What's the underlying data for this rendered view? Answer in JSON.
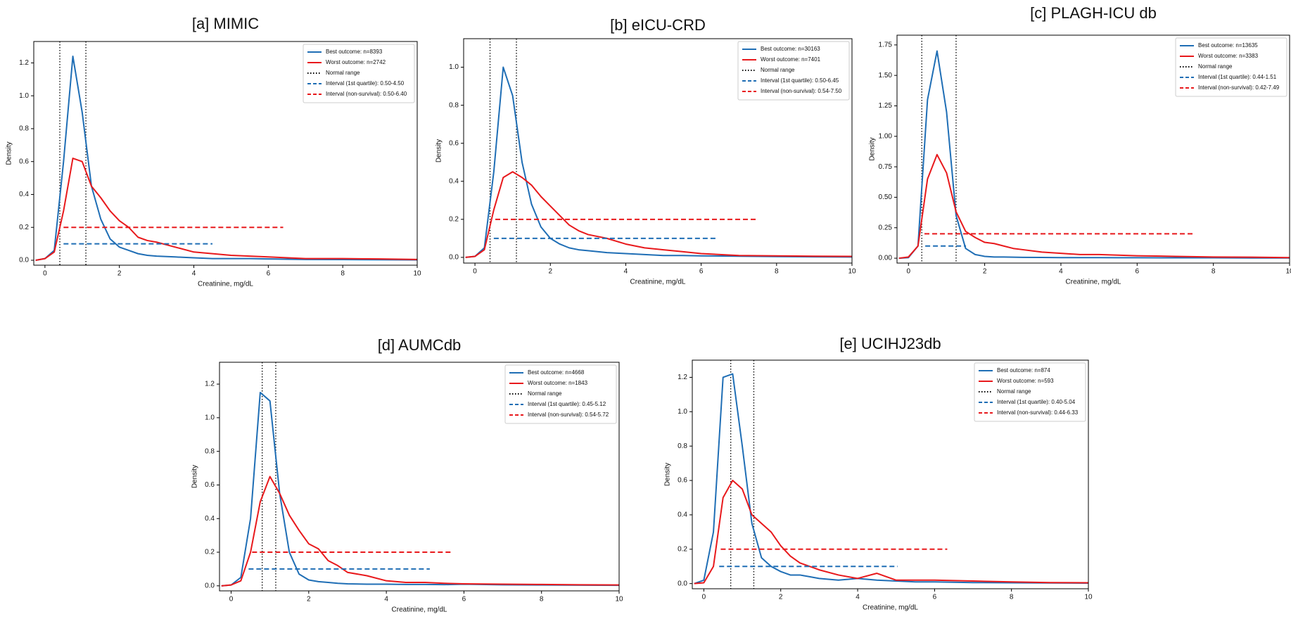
{
  "chart_data": [
    {
      "type": "line",
      "title": "[a] MIMIC",
      "xlabel": "Creatinine, mg/dL",
      "ylabel": "Density",
      "xlim": [
        -0.3,
        10
      ],
      "ylim": [
        -0.03,
        1.33
      ],
      "xticks": [
        0,
        2,
        4,
        6,
        8,
        10
      ],
      "yticks": [
        {
          "value": 0,
          "label": "0.0"
        },
        0.2,
        0.4,
        0.6,
        0.8,
        {
          "value": 1,
          "label": "1.0"
        },
        1.2
      ],
      "legend": "upper right",
      "x": [
        -0.25,
        0,
        0.25,
        0.5,
        0.75,
        1,
        1.25,
        1.5,
        1.75,
        2,
        2.25,
        2.5,
        2.75,
        3,
        3.5,
        4,
        4.5,
        5,
        5.5,
        6,
        7,
        8,
        9,
        10
      ],
      "series": [
        {
          "name": "Best outcome: n=8393",
          "color": "#1f6eb5",
          "values": [
            0,
            0.01,
            0.06,
            0.6,
            1.24,
            0.9,
            0.45,
            0.25,
            0.13,
            0.08,
            0.06,
            0.04,
            0.03,
            0.025,
            0.02,
            0.015,
            0.01,
            0.01,
            0.01,
            0.008,
            0.005,
            0.004,
            0.003,
            0.002
          ]
        },
        {
          "name": "Worst outcome: n=2742",
          "color": "#e8191c",
          "values": [
            0,
            0.01,
            0.05,
            0.3,
            0.62,
            0.6,
            0.45,
            0.38,
            0.3,
            0.24,
            0.2,
            0.14,
            0.12,
            0.11,
            0.08,
            0.05,
            0.04,
            0.03,
            0.025,
            0.02,
            0.01,
            0.01,
            0.008,
            0.005
          ]
        }
      ],
      "normal_range": {
        "name": "Normal range",
        "x": [
          0.4,
          1.1
        ]
      },
      "intervals": [
        {
          "name": "Interval (1st quartile): 0.50-4.50",
          "color": "#1f6eb5",
          "x": [
            0.5,
            4.5
          ],
          "y": 0.1
        },
        {
          "name": "Interval (non-survival): 0.50-6.40",
          "color": "#e8191c",
          "x": [
            0.5,
            6.4
          ],
          "y": 0.2
        }
      ]
    },
    {
      "type": "line",
      "title": "[b] eICU-CRD",
      "xlabel": "Creatinine, mg/dL",
      "ylabel": "Density",
      "xlim": [
        -0.3,
        10
      ],
      "ylim": [
        -0.03,
        1.15
      ],
      "xticks": [
        0,
        2,
        4,
        6,
        8,
        10
      ],
      "yticks": [
        {
          "value": 0,
          "label": "0.0"
        },
        0.2,
        0.4,
        0.6,
        0.8,
        {
          "value": 1,
          "label": "1.0"
        }
      ],
      "legend": "upper right",
      "x": [
        -0.25,
        0,
        0.25,
        0.5,
        0.75,
        1,
        1.25,
        1.5,
        1.75,
        2,
        2.25,
        2.5,
        2.75,
        3,
        3.5,
        4,
        4.5,
        5,
        5.5,
        6,
        7,
        8,
        9,
        10
      ],
      "series": [
        {
          "name": "Best outcome: n=30163",
          "color": "#1f6eb5",
          "values": [
            0,
            0.005,
            0.05,
            0.45,
            1.0,
            0.85,
            0.5,
            0.28,
            0.16,
            0.1,
            0.07,
            0.05,
            0.04,
            0.035,
            0.025,
            0.02,
            0.015,
            0.01,
            0.01,
            0.008,
            0.006,
            0.004,
            0.003,
            0.002
          ]
        },
        {
          "name": "Worst outcome: n=7401",
          "color": "#e8191c",
          "values": [
            0,
            0.005,
            0.04,
            0.25,
            0.42,
            0.45,
            0.42,
            0.38,
            0.32,
            0.27,
            0.22,
            0.17,
            0.14,
            0.12,
            0.1,
            0.07,
            0.05,
            0.04,
            0.03,
            0.02,
            0.01,
            0.008,
            0.006,
            0.005
          ]
        }
      ],
      "normal_range": {
        "name": "Normal range",
        "x": [
          0.4,
          1.1
        ]
      },
      "intervals": [
        {
          "name": "Interval (1st quartile): 0.50-6.45",
          "color": "#1f6eb5",
          "x": [
            0.5,
            6.45
          ],
          "y": 0.1
        },
        {
          "name": "Interval (non-survival): 0.54-7.50",
          "color": "#e8191c",
          "x": [
            0.54,
            7.5
          ],
          "y": 0.2
        }
      ]
    },
    {
      "type": "line",
      "title": "[c] PLAGH-ICU db",
      "xlabel": "Creatinine, mg/dL",
      "ylabel": "Density",
      "xlim": [
        -0.3,
        10
      ],
      "ylim": [
        -0.04,
        1.83
      ],
      "xticks": [
        0,
        2,
        4,
        6,
        8,
        10
      ],
      "yticks": [
        {
          "value": 0,
          "label": "0.00"
        },
        {
          "value": 0.25,
          "label": "0.25"
        },
        {
          "value": 0.5,
          "label": "0.50"
        },
        {
          "value": 0.75,
          "label": "0.75"
        },
        {
          "value": 1,
          "label": "1.00"
        },
        {
          "value": 1.25,
          "label": "1.25"
        },
        {
          "value": 1.5,
          "label": "1.50"
        },
        {
          "value": 1.75,
          "label": "1.75"
        }
      ],
      "legend": "upper right",
      "x": [
        -0.25,
        0,
        0.25,
        0.5,
        0.75,
        1,
        1.25,
        1.5,
        1.75,
        2,
        2.25,
        2.5,
        2.75,
        3,
        3.5,
        4,
        4.5,
        5,
        5.5,
        6,
        7,
        8,
        9,
        10
      ],
      "series": [
        {
          "name": "Best outcome: n=13635",
          "color": "#1f6eb5",
          "values": [
            0,
            0.005,
            0.1,
            1.3,
            1.7,
            1.2,
            0.35,
            0.08,
            0.03,
            0.015,
            0.01,
            0.01,
            0.008,
            0.007,
            0.006,
            0.005,
            0.005,
            0.005,
            0.004,
            0.004,
            0.003,
            0.003,
            0.002,
            0.002
          ]
        },
        {
          "name": "Worst outcome: n=3383",
          "color": "#e8191c",
          "values": [
            0,
            0.01,
            0.1,
            0.65,
            0.85,
            0.7,
            0.38,
            0.22,
            0.17,
            0.13,
            0.12,
            0.1,
            0.08,
            0.07,
            0.05,
            0.04,
            0.03,
            0.03,
            0.025,
            0.02,
            0.015,
            0.01,
            0.008,
            0.005
          ]
        }
      ],
      "normal_range": {
        "name": "Normal range",
        "x": [
          0.35,
          1.25
        ]
      },
      "intervals": [
        {
          "name": "Interval (1st quartile): 0.44-1.51",
          "color": "#1f6eb5",
          "x": [
            0.44,
            1.51
          ],
          "y": 0.1
        },
        {
          "name": "Interval (non-survival): 0.42-7.49",
          "color": "#e8191c",
          "x": [
            0.42,
            7.49
          ],
          "y": 0.2
        }
      ]
    },
    {
      "type": "line",
      "title": "[d] AUMCdb",
      "xlabel": "Creatinine, mg/dL",
      "ylabel": "Density",
      "xlim": [
        -0.3,
        10
      ],
      "ylim": [
        -0.03,
        1.33
      ],
      "xticks": [
        0,
        2,
        4,
        6,
        8,
        10
      ],
      "yticks": [
        {
          "value": 0,
          "label": "0.0"
        },
        0.2,
        0.4,
        0.6,
        0.8,
        {
          "value": 1,
          "label": "1.0"
        },
        1.2
      ],
      "legend": "upper right",
      "x": [
        -0.25,
        0,
        0.25,
        0.5,
        0.75,
        1,
        1.25,
        1.5,
        1.75,
        2,
        2.25,
        2.5,
        2.75,
        3,
        3.5,
        4,
        4.5,
        5,
        5.5,
        6,
        7,
        8,
        9,
        10
      ],
      "series": [
        {
          "name": "Best outcome: n=4668",
          "color": "#1f6eb5",
          "values": [
            0,
            0.005,
            0.05,
            0.4,
            1.15,
            1.1,
            0.55,
            0.2,
            0.07,
            0.035,
            0.025,
            0.02,
            0.015,
            0.012,
            0.01,
            0.01,
            0.008,
            0.008,
            0.007,
            0.01,
            0.006,
            0.005,
            0.004,
            0.003
          ]
        },
        {
          "name": "Worst outcome: n=1843",
          "color": "#e8191c",
          "values": [
            0,
            0.005,
            0.03,
            0.2,
            0.5,
            0.65,
            0.55,
            0.42,
            0.33,
            0.25,
            0.22,
            0.15,
            0.12,
            0.08,
            0.06,
            0.03,
            0.02,
            0.02,
            0.015,
            0.012,
            0.01,
            0.008,
            0.006,
            0.005
          ]
        }
      ],
      "normal_range": {
        "name": "Normal range",
        "x": [
          0.8,
          1.15
        ]
      },
      "intervals": [
        {
          "name": "Interval (1st quartile): 0.45-5.12",
          "color": "#1f6eb5",
          "x": [
            0.45,
            5.12
          ],
          "y": 0.1
        },
        {
          "name": "Interval (non-survival): 0.54-5.72",
          "color": "#e8191c",
          "x": [
            0.54,
            5.72
          ],
          "y": 0.2
        }
      ]
    },
    {
      "type": "line",
      "title": "[e] UCIHJ23db",
      "xlabel": "Creatinine, mg/dL",
      "ylabel": "Density",
      "xlim": [
        -0.3,
        10
      ],
      "ylim": [
        -0.03,
        1.3
      ],
      "xticks": [
        0,
        2,
        4,
        6,
        8,
        10
      ],
      "yticks": [
        {
          "value": 0,
          "label": "0.0"
        },
        0.2,
        0.4,
        0.6,
        0.8,
        {
          "value": 1,
          "label": "1.0"
        },
        1.2
      ],
      "legend": "upper right",
      "x": [
        -0.25,
        0,
        0.25,
        0.5,
        0.75,
        1,
        1.25,
        1.5,
        1.75,
        2,
        2.25,
        2.5,
        2.75,
        3,
        3.5,
        4,
        4.5,
        5,
        5.5,
        6,
        7,
        8,
        9,
        10
      ],
      "series": [
        {
          "name": "Best outcome: n=874",
          "color": "#1f6eb5",
          "values": [
            0,
            0.02,
            0.3,
            1.2,
            1.22,
            0.8,
            0.35,
            0.15,
            0.1,
            0.07,
            0.05,
            0.05,
            0.04,
            0.03,
            0.02,
            0.03,
            0.02,
            0.015,
            0.01,
            0.01,
            0.006,
            0.005,
            0.004,
            0.003
          ]
        },
        {
          "name": "Worst outcome: n=593",
          "color": "#e8191c",
          "values": [
            0,
            0.005,
            0.1,
            0.5,
            0.6,
            0.55,
            0.4,
            0.35,
            0.3,
            0.22,
            0.16,
            0.12,
            0.1,
            0.08,
            0.05,
            0.03,
            0.06,
            0.02,
            0.02,
            0.02,
            0.015,
            0.01,
            0.006,
            0.005
          ]
        }
      ],
      "normal_range": {
        "name": "Normal range",
        "x": [
          0.7,
          1.3
        ]
      },
      "intervals": [
        {
          "name": "Interval (1st quartile): 0.40-5.04",
          "color": "#1f6eb5",
          "x": [
            0.4,
            5.04
          ],
          "y": 0.1
        },
        {
          "name": "Interval (non-survival): 0.44-6.33",
          "color": "#e8191c",
          "x": [
            0.44,
            6.33
          ],
          "y": 0.2
        }
      ]
    }
  ]
}
